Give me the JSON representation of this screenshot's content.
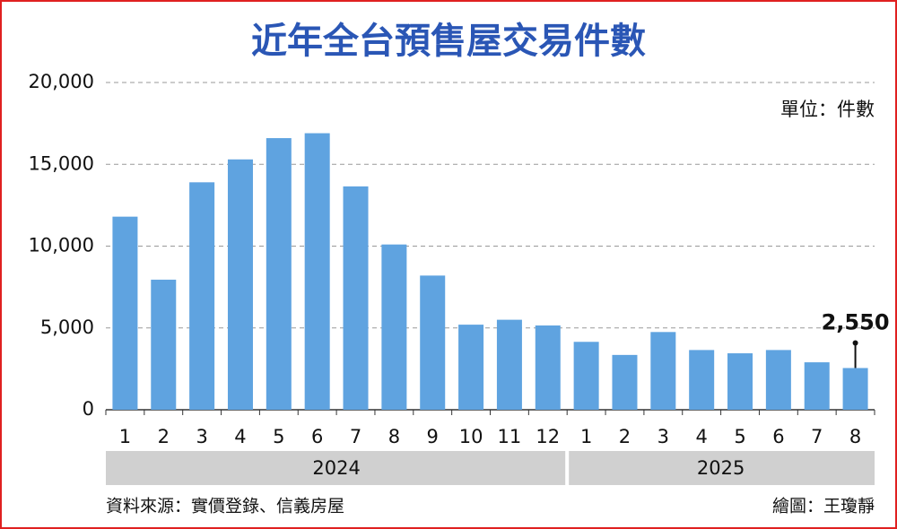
{
  "chart_data": {
    "type": "bar",
    "title": "近年全台預售屋交易件數",
    "unit_note": "單位：件數",
    "source": "資料來源：實價登錄、信義房屋",
    "credit": "繪圖：王瓊靜",
    "categories": [
      "1",
      "2",
      "3",
      "4",
      "5",
      "6",
      "7",
      "8",
      "9",
      "10",
      "11",
      "12",
      "1",
      "2",
      "3",
      "4",
      "5",
      "6",
      "7",
      "8"
    ],
    "groups": [
      {
        "name": "2024",
        "span": 12
      },
      {
        "name": "2025",
        "span": 8
      }
    ],
    "values": [
      11800,
      7950,
      13900,
      15300,
      16600,
      16900,
      13650,
      10100,
      8200,
      5200,
      5500,
      5150,
      4150,
      3350,
      4750,
      3650,
      3450,
      3650,
      2900,
      2550
    ],
    "value_labels": [
      null,
      null,
      null,
      null,
      null,
      null,
      null,
      null,
      null,
      null,
      null,
      null,
      null,
      null,
      null,
      null,
      null,
      null,
      null,
      "2,550"
    ],
    "color": "#5fa3e0",
    "ylim": [
      0,
      20000
    ],
    "yticks": [
      0,
      {
        "value": 5000,
        "label": "5,000"
      },
      {
        "value": 10000,
        "label": "10,000"
      },
      {
        "value": 15000,
        "label": "15,000"
      },
      {
        "value": 20000,
        "label": "20,000"
      }
    ],
    "grid": true
  }
}
